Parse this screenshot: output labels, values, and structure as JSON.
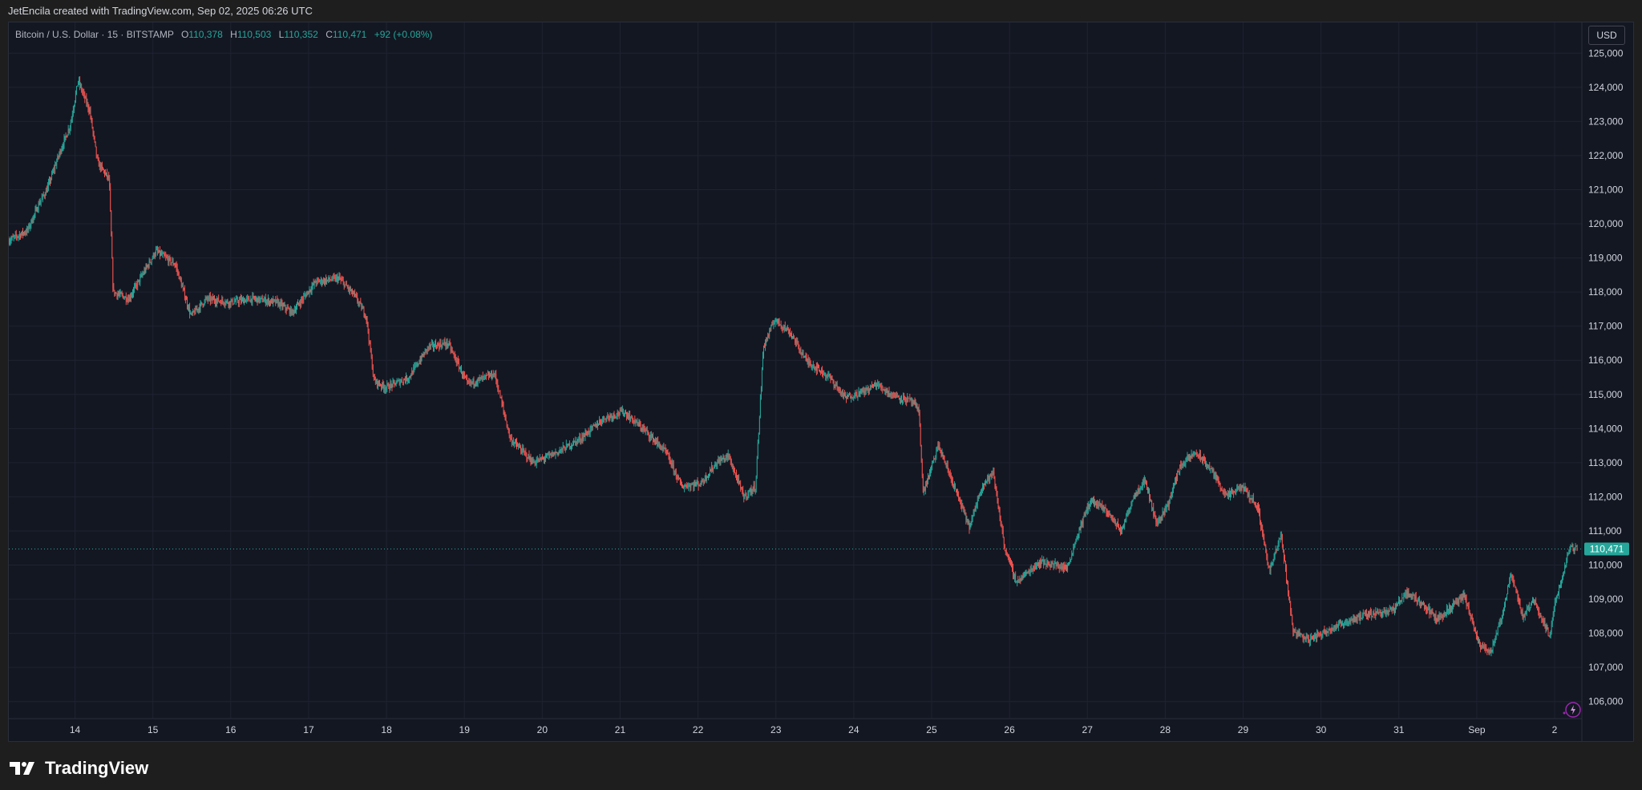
{
  "header": {
    "attribution": "JetEncila created with TradingView.com, Sep 02, 2025 06:26 UTC"
  },
  "legend": {
    "symbol": "Bitcoin / U.S. Dollar · 15 · BITSTAMP",
    "open_key": "O",
    "open": "110,378",
    "high_key": "H",
    "high": "110,503",
    "low_key": "L",
    "low": "110,352",
    "close_key": "C",
    "close": "110,471",
    "change": "+92 (+0.08%)"
  },
  "currency": "USD",
  "brand": {
    "name": "TradingView",
    "icon": "tradingview-logo-icon"
  },
  "lightning_icon": "lightning-icon",
  "colors": {
    "up": "#26a69a",
    "down": "#ef5350",
    "background": "#131722",
    "grid": "#1f2330"
  },
  "chart_data": {
    "type": "candlestick",
    "interval": "15",
    "ylim": [
      105500,
      125900
    ],
    "y_ticks": [
      106000,
      107000,
      108000,
      109000,
      110000,
      111000,
      112000,
      113000,
      114000,
      115000,
      116000,
      117000,
      118000,
      119000,
      120000,
      121000,
      122000,
      123000,
      124000,
      125000
    ],
    "y_tick_labels": [
      "106,000",
      "107,000",
      "108,000",
      "109,000",
      "110,000",
      "111,000",
      "112,000",
      "113,000",
      "114,000",
      "115,000",
      "116,000",
      "117,000",
      "118,000",
      "119,000",
      "120,000",
      "121,000",
      "122,000",
      "123,000",
      "124,000",
      "125,000"
    ],
    "x_range": [
      -0.85,
      19.35
    ],
    "x_ticks": [
      {
        "pos": 0,
        "label": "14"
      },
      {
        "pos": 1,
        "label": "15"
      },
      {
        "pos": 2,
        "label": "16"
      },
      {
        "pos": 3,
        "label": "17"
      },
      {
        "pos": 4,
        "label": "18"
      },
      {
        "pos": 5,
        "label": "19"
      },
      {
        "pos": 6,
        "label": "20"
      },
      {
        "pos": 7,
        "label": "21"
      },
      {
        "pos": 8,
        "label": "22"
      },
      {
        "pos": 9,
        "label": "23"
      },
      {
        "pos": 10,
        "label": "24"
      },
      {
        "pos": 11,
        "label": "25"
      },
      {
        "pos": 12,
        "label": "26"
      },
      {
        "pos": 13,
        "label": "27"
      },
      {
        "pos": 14,
        "label": "28"
      },
      {
        "pos": 15,
        "label": "29"
      },
      {
        "pos": 16,
        "label": "30"
      },
      {
        "pos": 17,
        "label": "31"
      },
      {
        "pos": 18,
        "label": "Sep"
      },
      {
        "pos": 19,
        "label": "2"
      }
    ],
    "price_path": [
      [
        -0.85,
        119500
      ],
      [
        -0.6,
        119800
      ],
      [
        -0.45,
        120600
      ],
      [
        -0.35,
        121000
      ],
      [
        -0.2,
        122000
      ],
      [
        -0.05,
        122900
      ],
      [
        0.05,
        124200
      ],
      [
        0.2,
        123300
      ],
      [
        0.3,
        121800
      ],
      [
        0.45,
        121300
      ],
      [
        0.5,
        118000
      ],
      [
        0.7,
        117800
      ],
      [
        0.9,
        118600
      ],
      [
        1.05,
        119200
      ],
      [
        1.3,
        118800
      ],
      [
        1.5,
        117300
      ],
      [
        1.7,
        117800
      ],
      [
        2.0,
        117700
      ],
      [
        2.3,
        117800
      ],
      [
        2.6,
        117700
      ],
      [
        2.8,
        117400
      ],
      [
        3.1,
        118300
      ],
      [
        3.4,
        118400
      ],
      [
        3.6,
        117900
      ],
      [
        3.75,
        117300
      ],
      [
        3.85,
        115400
      ],
      [
        4.0,
        115200
      ],
      [
        4.3,
        115500
      ],
      [
        4.55,
        116400
      ],
      [
        4.8,
        116500
      ],
      [
        5.05,
        115300
      ],
      [
        5.4,
        115600
      ],
      [
        5.6,
        113700
      ],
      [
        5.9,
        113000
      ],
      [
        6.2,
        113300
      ],
      [
        6.5,
        113700
      ],
      [
        6.8,
        114300
      ],
      [
        7.05,
        114500
      ],
      [
        7.35,
        113900
      ],
      [
        7.6,
        113300
      ],
      [
        7.8,
        112300
      ],
      [
        8.05,
        112400
      ],
      [
        8.25,
        113000
      ],
      [
        8.4,
        113200
      ],
      [
        8.6,
        112000
      ],
      [
        8.75,
        112300
      ],
      [
        8.85,
        116400
      ],
      [
        9.0,
        117200
      ],
      [
        9.2,
        116800
      ],
      [
        9.4,
        116000
      ],
      [
        9.7,
        115500
      ],
      [
        9.9,
        114900
      ],
      [
        10.15,
        115100
      ],
      [
        10.3,
        115300
      ],
      [
        10.5,
        115000
      ],
      [
        10.75,
        114800
      ],
      [
        10.85,
        114500
      ],
      [
        10.9,
        112100
      ],
      [
        11.1,
        113500
      ],
      [
        11.3,
        112300
      ],
      [
        11.5,
        111100
      ],
      [
        11.65,
        112300
      ],
      [
        11.8,
        112700
      ],
      [
        11.95,
        110500
      ],
      [
        12.1,
        109500
      ],
      [
        12.4,
        110100
      ],
      [
        12.6,
        110000
      ],
      [
        12.75,
        109900
      ],
      [
        12.9,
        111000
      ],
      [
        13.05,
        111900
      ],
      [
        13.25,
        111600
      ],
      [
        13.45,
        111000
      ],
      [
        13.6,
        112000
      ],
      [
        13.75,
        112500
      ],
      [
        13.9,
        111200
      ],
      [
        14.05,
        111800
      ],
      [
        14.2,
        112900
      ],
      [
        14.4,
        113300
      ],
      [
        14.6,
        112800
      ],
      [
        14.8,
        112000
      ],
      [
        15.0,
        112300
      ],
      [
        15.2,
        111700
      ],
      [
        15.35,
        109800
      ],
      [
        15.5,
        110900
      ],
      [
        15.65,
        108100
      ],
      [
        15.85,
        107800
      ],
      [
        16.1,
        108100
      ],
      [
        16.4,
        108400
      ],
      [
        16.7,
        108600
      ],
      [
        16.95,
        108700
      ],
      [
        17.1,
        109200
      ],
      [
        17.3,
        108900
      ],
      [
        17.5,
        108400
      ],
      [
        17.7,
        108800
      ],
      [
        17.85,
        109100
      ],
      [
        18.05,
        107600
      ],
      [
        18.2,
        107500
      ],
      [
        18.35,
        108600
      ],
      [
        18.45,
        109800
      ],
      [
        18.6,
        108500
      ],
      [
        18.75,
        109000
      ],
      [
        18.85,
        108400
      ],
      [
        18.95,
        107900
      ],
      [
        19.0,
        108800
      ],
      [
        19.1,
        109500
      ],
      [
        19.2,
        110500
      ],
      [
        19.3,
        110471
      ]
    ],
    "last_price": 110471,
    "last_price_label": "110,471"
  }
}
